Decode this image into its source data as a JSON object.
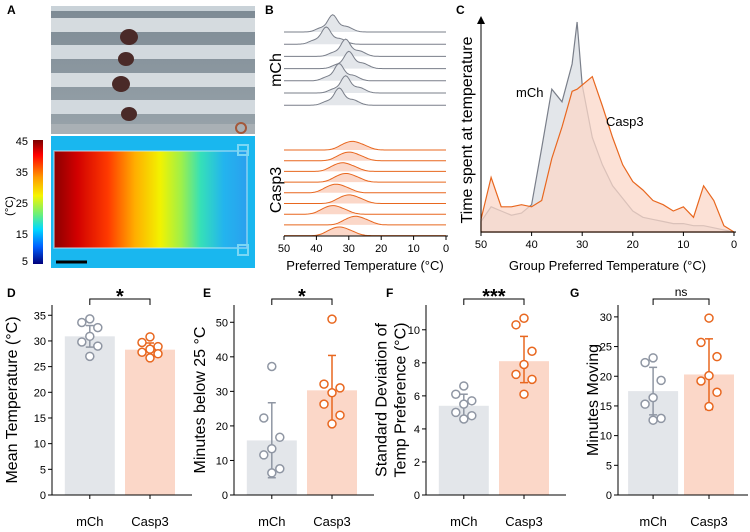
{
  "panel_letters": [
    "A",
    "B",
    "C",
    "D",
    "E",
    "F",
    "G"
  ],
  "colors": {
    "mch_fill": "#e3e6ea",
    "mch_line": "#7a7f8a",
    "mch_point": "#8f96a3",
    "casp3_fill": "#fbd7c8",
    "casp3_line": "#e8671f",
    "casp3_point": "#e8671f"
  },
  "panel_a": {
    "colorbar_ticks": [
      "45",
      "35",
      "25",
      "15",
      "5"
    ],
    "colorbar_unit": "(°C)"
  },
  "chart_data": [
    {
      "panel": "B",
      "type": "area",
      "title": "",
      "xlabel": "Preferred Temperature (°C)",
      "ylabel": "",
      "x_ticks": [
        "50",
        "40",
        "30",
        "20",
        "10",
        "0"
      ],
      "xlim": [
        50,
        0
      ],
      "group_labels": [
        "mCh",
        "Casp3"
      ],
      "series": [
        {
          "name": "mCh",
          "n_traces": 7,
          "peaks": [
            35,
            37,
            31,
            30,
            33,
            31,
            33
          ]
        },
        {
          "name": "Casp3",
          "n_traces": 9,
          "peaks": [
            29,
            30,
            32,
            31,
            34,
            30,
            35,
            28,
            33
          ]
        }
      ]
    },
    {
      "panel": "C",
      "type": "area",
      "title": "",
      "xlabel": "Group Preferred Temperature (°C)",
      "ylabel": "Time spent at temperature",
      "x_ticks": [
        "50",
        "40",
        "30",
        "20",
        "10",
        "0"
      ],
      "xlim": [
        50,
        0
      ],
      "x": [
        50,
        48,
        46,
        44,
        42,
        40,
        38,
        36,
        34,
        32,
        31,
        30,
        28,
        26,
        24,
        22,
        20,
        18,
        16,
        14,
        12,
        10,
        8,
        6,
        4,
        2,
        0
      ],
      "series": [
        {
          "name": "mCh",
          "label": "mCh",
          "values": [
            0.05,
            0.12,
            0.1,
            0.08,
            0.09,
            0.13,
            0.4,
            0.68,
            0.62,
            0.8,
            1.0,
            0.7,
            0.45,
            0.32,
            0.22,
            0.16,
            0.1,
            0.07,
            0.06,
            0.05,
            0.04,
            0.04,
            0.03,
            0.03,
            0.02,
            0.01,
            0.0
          ]
        },
        {
          "name": "Casp3",
          "label": "Casp3",
          "values": [
            0.06,
            0.26,
            0.12,
            0.12,
            0.13,
            0.12,
            0.15,
            0.35,
            0.5,
            0.67,
            0.68,
            0.7,
            0.74,
            0.6,
            0.45,
            0.32,
            0.24,
            0.2,
            0.15,
            0.13,
            0.1,
            0.12,
            0.07,
            0.22,
            0.15,
            0.03,
            0.0
          ]
        }
      ]
    },
    {
      "panel": "D",
      "type": "bar",
      "ylabel": "Mean Temperature (°C)",
      "categories": [
        "mCh",
        "Casp3"
      ],
      "values": [
        30.9,
        28.3
      ],
      "error": [
        [
          28.8,
          33.0
        ],
        [
          27.0,
          29.6
        ]
      ],
      "points": [
        [
          34.3,
          33.6,
          32.6,
          30.9,
          29.8,
          29.0,
          27.0
        ],
        [
          30.8,
          29.7,
          28.9,
          28.4,
          27.8,
          27.5,
          26.7
        ]
      ],
      "ylim": [
        0,
        37
      ],
      "y_ticks": [
        0,
        5,
        10,
        15,
        20,
        25,
        30,
        35
      ],
      "significance": "*"
    },
    {
      "panel": "E",
      "type": "bar",
      "ylabel": "Minutes below 25 °C",
      "categories": [
        "mCh",
        "Casp3"
      ],
      "values": [
        15.8,
        30.3
      ],
      "error": [
        [
          5.0,
          26.7
        ],
        [
          20.8,
          40.4
        ]
      ],
      "points": [
        [
          37.2,
          22.3,
          16.7,
          13.4,
          11.6,
          7.6,
          6.4
        ],
        [
          50.9,
          32.1,
          31.0,
          29.6,
          26.3,
          23.1,
          20.6
        ]
      ],
      "ylim": [
        0,
        55
      ],
      "y_ticks": [
        0,
        10,
        20,
        30,
        40,
        50
      ],
      "significance": "*"
    },
    {
      "panel": "F",
      "type": "bar",
      "ylabel": "Standard Deviation of Temp Preference (°C)",
      "ylabel_lines": [
        "Standard Deviation of",
        "Temp Preference (°C)"
      ],
      "categories": [
        "mCh",
        "Casp3"
      ],
      "values": [
        5.4,
        8.1
      ],
      "error": [
        [
          4.7,
          6.1
        ],
        [
          6.8,
          9.6
        ]
      ],
      "points": [
        [
          6.6,
          6.1,
          5.7,
          5.5,
          5.0,
          4.8,
          4.6
        ],
        [
          10.7,
          10.3,
          8.7,
          7.9,
          7.3,
          7.0,
          6.1
        ]
      ],
      "ylim": [
        0,
        11.5
      ],
      "y_ticks": [
        0,
        2,
        4,
        6,
        8,
        10
      ],
      "significance": "***"
    },
    {
      "panel": "G",
      "type": "bar",
      "ylabel": "Minutes Moving",
      "categories": [
        "mCh",
        "Casp3"
      ],
      "values": [
        17.5,
        20.3
      ],
      "error": [
        [
          13.5,
          21.5
        ],
        [
          14.4,
          26.3
        ]
      ],
      "points": [
        [
          23.1,
          22.3,
          19.3,
          16.4,
          15.3,
          12.9,
          12.6
        ],
        [
          29.8,
          25.7,
          23.3,
          20.1,
          19.2,
          17.3,
          14.9
        ]
      ],
      "ylim": [
        0,
        32
      ],
      "y_ticks": [
        0,
        5,
        10,
        15,
        20,
        25,
        30
      ],
      "significance": "ns"
    }
  ]
}
